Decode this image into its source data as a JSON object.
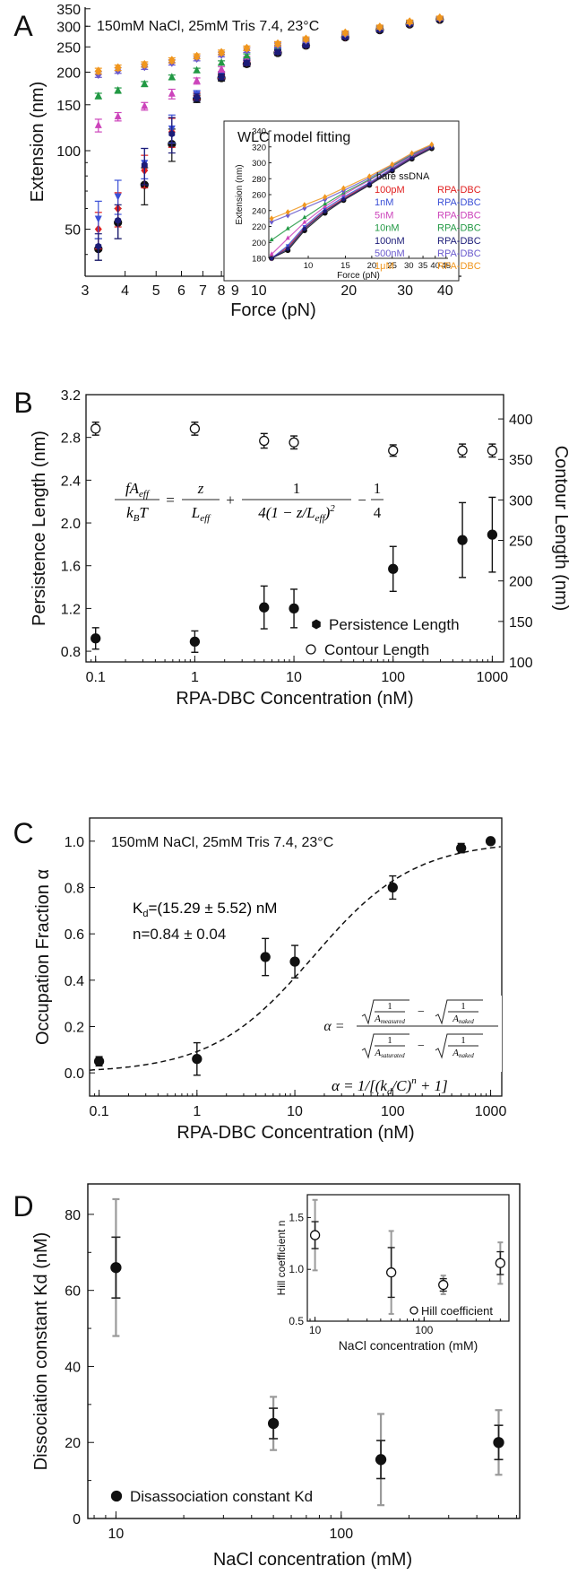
{
  "chart_data": [
    {
      "panel": "A",
      "type": "scatter",
      "title": "150mM NaCl, 25mM Tris 7.4, 23°C",
      "xlabel": "Force (pN)",
      "ylabel": "Extension (nm)",
      "xscale": "log",
      "yscale": "log",
      "xlim": [
        3,
        45
      ],
      "ylim": [
        33,
        355
      ],
      "xticks": [
        3,
        4,
        5,
        6,
        7,
        8,
        9,
        10,
        20,
        30,
        40
      ],
      "xtick_labels": [
        "3",
        "4",
        "5",
        "6",
        "7",
        "8",
        "9",
        "10",
        "20",
        "30",
        "40"
      ],
      "yticks": [
        50,
        100,
        150,
        200,
        250,
        300,
        350
      ],
      "ytick_labels": [
        "50",
        "100",
        "150",
        "200",
        "250",
        "300",
        "350"
      ],
      "x": [
        3.3,
        3.8,
        4.6,
        5.6,
        6.7,
        8.0,
        9.6,
        12.0,
        14.7,
        19.5,
        25.0,
        31.0,
        38.5
      ],
      "series": [
        {
          "name": "bare ssDNA",
          "color": "#111111",
          "values": [
            42,
            53,
            74,
            106,
            158,
            190,
            215,
            237,
            253,
            272,
            290,
            305,
            318
          ],
          "errors": [
            4,
            7,
            12,
            15,
            5,
            5,
            5,
            5,
            5,
            5,
            5,
            5,
            5
          ]
        },
        {
          "name": "100pM RPA-DBC",
          "color": "#e02020",
          "values": [
            50,
            60,
            84,
            118,
            162,
            194,
            218,
            240,
            255,
            274,
            292,
            307,
            320
          ],
          "errors": [
            8,
            9,
            12,
            15,
            5,
            5,
            5,
            5,
            5,
            5,
            5,
            5,
            5
          ]
        },
        {
          "name": "1nM RPA-DBC",
          "color": "#3a4fd6",
          "values": [
            55,
            67,
            90,
            122,
            165,
            196,
            220,
            242,
            257,
            275,
            293,
            308,
            321
          ],
          "errors": [
            9,
            10,
            12,
            15,
            5,
            5,
            5,
            5,
            5,
            5,
            5,
            5,
            5
          ]
        },
        {
          "name": "5nM RPA-DBC",
          "color": "#cc44bb",
          "values": [
            125,
            135,
            148,
            165,
            185,
            205,
            225,
            245,
            260,
            278,
            295,
            309,
            322
          ],
          "errors": [
            7,
            5,
            5,
            7,
            5,
            5,
            5,
            5,
            5,
            5,
            5,
            5,
            5
          ]
        },
        {
          "name": "10nM RPA-DBC",
          "color": "#229944",
          "values": [
            162,
            170,
            180,
            191,
            203,
            217,
            231,
            248,
            262,
            279,
            296,
            310,
            322
          ],
          "errors": [
            4,
            4,
            4,
            4,
            4,
            4,
            4,
            4,
            4,
            4,
            4,
            4,
            4
          ]
        },
        {
          "name": "100nM RPA-DBC",
          "color": "#1c1c78",
          "values": [
            43,
            54,
            88,
            116,
            160,
            192,
            217,
            239,
            254,
            273,
            291,
            306,
            319
          ],
          "errors": [
            5,
            8,
            14,
            18,
            5,
            5,
            5,
            5,
            5,
            5,
            5,
            5,
            5
          ]
        },
        {
          "name": "500nM RPA-DBC",
          "color": "#6a5acd",
          "values": [
            196,
            203,
            210,
            218,
            226,
            234,
            243,
            254,
            265,
            281,
            297,
            311,
            322
          ],
          "errors": [
            5,
            5,
            5,
            5,
            5,
            5,
            5,
            5,
            5,
            5,
            5,
            5,
            5
          ]
        },
        {
          "name": "1μM RPA-DBC",
          "color": "#f0961e",
          "values": [
            202,
            208,
            214,
            222,
            230,
            238,
            247,
            257,
            268,
            283,
            298,
            312,
            323
          ],
          "errors": [
            5,
            5,
            5,
            5,
            5,
            5,
            5,
            5,
            5,
            5,
            5,
            5,
            5
          ]
        }
      ],
      "inset": {
        "title": "WLC model fitting",
        "xlabel": "Force (pN)",
        "ylabel": "Extension (nm)",
        "xscale": "log",
        "xlim": [
          6.5,
          46
        ],
        "ylim": [
          180,
          340
        ],
        "xticks": [
          10,
          15,
          20,
          25,
          30,
          35,
          40,
          45
        ],
        "xtick_labels": [
          "10",
          "15",
          "20",
          "25",
          "30",
          "35",
          "40",
          "45"
        ],
        "yticks": [
          180,
          200,
          220,
          240,
          260,
          280,
          300,
          320,
          340
        ],
        "ytick_labels": [
          "180",
          "200",
          "220",
          "240",
          "260",
          "280",
          "300",
          "320",
          "340"
        ],
        "legend_title": "bare ssDNA",
        "legend": [
          {
            "conc": "100pM",
            "name": "RPA-DBC",
            "color": "#e02020"
          },
          {
            "conc": "1nM",
            "name": "RPA-DBC",
            "color": "#3a4fd6"
          },
          {
            "conc": "5nM",
            "name": "RPA-DBC",
            "color": "#cc44bb"
          },
          {
            "conc": "10nM",
            "name": "RPA-DBC",
            "color": "#229944"
          },
          {
            "conc": "100nM",
            "name": "RPA-DBC",
            "color": "#1c1c78"
          },
          {
            "conc": "500nM",
            "name": "RPA-DBC",
            "color": "#6a5acd"
          },
          {
            "conc": "1μM",
            "name": "RPA-DBC",
            "color": "#f0961e"
          }
        ]
      }
    },
    {
      "panel": "B",
      "type": "scatter",
      "xlabel": "RPA-DBC Concentration (nM)",
      "ylabel": "Persistence Length (nm)",
      "y2label": "Contour Length (nm)",
      "xscale": "log",
      "xlim": [
        0.08,
        1300
      ],
      "ylim": [
        0.7,
        3.2
      ],
      "y2lim": [
        100,
        430
      ],
      "xticks": [
        0.1,
        1,
        10,
        100,
        1000
      ],
      "xtick_labels": [
        "0.1",
        "1",
        "10",
        "100",
        "1000"
      ],
      "yticks": [
        0.8,
        1.2,
        1.6,
        2.0,
        2.4,
        2.8,
        3.2
      ],
      "ytick_labels": [
        "0.8",
        "1.2",
        "1.6",
        "2.0",
        "2.4",
        "2.8",
        "3.2"
      ],
      "y2ticks": [
        100,
        150,
        200,
        250,
        300,
        350,
        400
      ],
      "y2tick_labels": [
        "100",
        "150",
        "200",
        "250",
        "300",
        "350",
        "400"
      ],
      "x": [
        0.1,
        1,
        5,
        10,
        100,
        500,
        1000
      ],
      "series": [
        {
          "name": "Persistence Length",
          "axis": "left",
          "filled": true,
          "values": [
            0.92,
            0.89,
            1.21,
            1.2,
            1.57,
            1.84,
            1.89
          ],
          "errors": [
            0.1,
            0.1,
            0.2,
            0.18,
            0.21,
            0.35,
            0.35
          ]
        },
        {
          "name": "Contour Length",
          "axis": "right",
          "filled": false,
          "values": [
            388,
            388,
            373,
            371,
            361,
            361,
            361
          ],
          "errors": [
            8,
            8,
            9,
            8,
            7,
            8,
            8
          ]
        }
      ],
      "equation": {
        "lhs_num": "fA",
        "lhs_num_sub": "eff",
        "lhs_den": "k",
        "lhs_den_sub": "B",
        "lhs_den_tail": "T",
        "t1_num": "z",
        "t1_den": "L",
        "t1_den_sub": "eff",
        "t2_num": "1",
        "t2_den_a": "4(1 − z/L",
        "t2_den_sub": "eff",
        "t2_den_b": ")",
        "t2_den_sup": "2",
        "t3_num": "1",
        "t3_den": "4"
      }
    },
    {
      "panel": "C",
      "type": "scatter",
      "title": "150mM NaCl, 25mM Tris 7.4, 23°C",
      "xlabel": "RPA-DBC Concentration (nM)",
      "ylabel": "Occupation Fraction α",
      "xscale": "log",
      "xlim": [
        0.08,
        1300
      ],
      "ylim": [
        -0.1,
        1.1
      ],
      "xticks": [
        0.1,
        1,
        10,
        100,
        1000
      ],
      "xtick_labels": [
        "0.1",
        "1",
        "10",
        "100",
        "1000"
      ],
      "yticks": [
        0.0,
        0.2,
        0.4,
        0.6,
        0.8,
        1.0
      ],
      "ytick_labels": [
        "0.0",
        "0.2",
        "0.4",
        "0.6",
        "0.8",
        "1.0"
      ],
      "x": [
        0.1,
        1,
        5,
        10,
        100,
        500,
        1000
      ],
      "values": [
        0.05,
        0.06,
        0.5,
        0.48,
        0.8,
        0.97,
        1.0
      ],
      "errors": [
        0.02,
        0.07,
        0.08,
        0.07,
        0.05,
        0.02,
        0.0
      ],
      "fit": {
        "Kd": 15.29,
        "n": 0.84
      },
      "annotations": {
        "kd_pre": "K",
        "kd_sub": "d",
        "kd_post": "=(15.29 ± 5.52) nM",
        "n_text": "n=0.84 ± 0.04"
      },
      "equation1": {
        "lhs": "α",
        "a_measured": "measured",
        "a_naked": "naked",
        "a_saturated": "saturated"
      },
      "equation2": {
        "text_a": "α = 1/[(k",
        "sub": "d",
        "text_b": "/C)",
        "sup": "n",
        "text_c": " + 1]"
      }
    },
    {
      "panel": "D",
      "type": "scatter",
      "xlabel": "NaCl concentration (mM)",
      "ylabel": "Dissociation constant Kd (nM)",
      "xscale": "log",
      "xlim": [
        7.5,
        620
      ],
      "ylim": [
        0,
        88
      ],
      "xticks": [
        10,
        100
      ],
      "xtick_labels": [
        "10",
        "100"
      ],
      "yticks": [
        0,
        20,
        40,
        60,
        80
      ],
      "ytick_labels": [
        "0",
        "20",
        "40",
        "60",
        "80"
      ],
      "x": [
        10,
        50,
        150,
        500
      ],
      "series": [
        {
          "name": "Disassociation constant Kd",
          "filled": true,
          "values": [
            66,
            25,
            15.5,
            20
          ],
          "errors_inner": [
            8,
            4,
            5,
            4.5
          ],
          "errors_outer": [
            18,
            7,
            12,
            8.5
          ]
        }
      ],
      "inset": {
        "xlabel": "NaCl concentration (mM)",
        "ylabel": "Hill coefficient n",
        "xscale": "log",
        "xlim": [
          8.5,
          600
        ],
        "ylim": [
          0.5,
          1.72
        ],
        "xticks": [
          10,
          100
        ],
        "xtick_labels": [
          "10",
          "100"
        ],
        "yticks": [
          0.5,
          1.0,
          1.5
        ],
        "ytick_labels": [
          "0.5",
          "1.0",
          "1.5"
        ],
        "x": [
          10,
          50,
          150,
          500
        ],
        "values": [
          1.33,
          0.97,
          0.85,
          1.06
        ],
        "errors_inner": [
          0.13,
          0.24,
          0.06,
          0.11
        ],
        "errors_outer": [
          0.34,
          0.4,
          0.09,
          0.2
        ],
        "legend": "Hill coefficient"
      }
    }
  ],
  "labels": {
    "a": "A",
    "b": "B",
    "c": "C",
    "d": "D"
  }
}
